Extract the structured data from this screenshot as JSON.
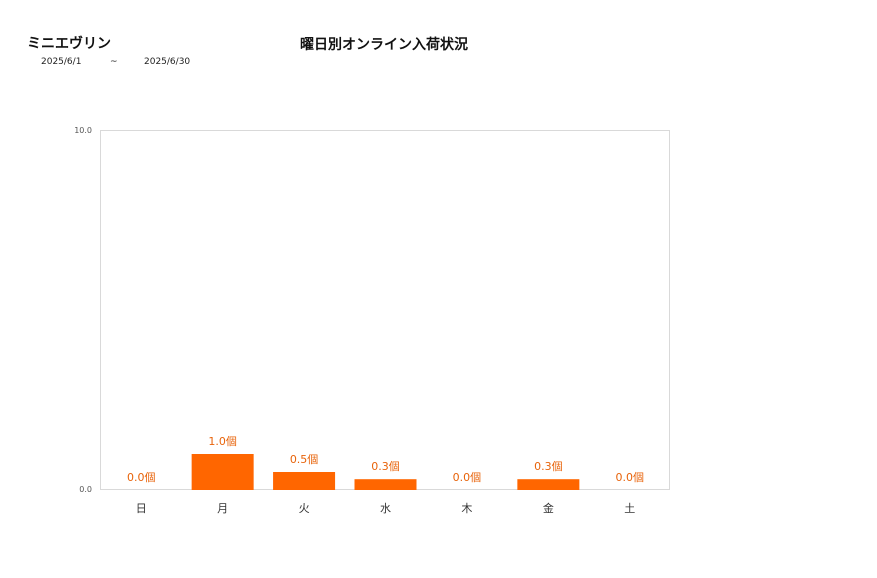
{
  "header": {
    "product_name": "ミニエヴリン",
    "date_from": "2025/6/1",
    "date_sep": "~",
    "date_to": "2025/6/30"
  },
  "chart_data": {
    "type": "bar",
    "title": "曜日別オンライン入荷状況",
    "categories": [
      "日",
      "月",
      "火",
      "水",
      "木",
      "金",
      "土"
    ],
    "values": [
      0.0,
      1.0,
      0.5,
      0.3,
      0.0,
      0.3,
      0.0
    ],
    "data_labels": [
      "0.0個",
      "1.0個",
      "0.5個",
      "0.3個",
      "0.0個",
      "0.3個",
      "0.0個"
    ],
    "yticks": [
      "0.0",
      "10.0"
    ],
    "ylim": [
      0,
      10
    ],
    "xlabel": "",
    "ylabel": "",
    "grid": false,
    "bar_color": "#ff6600",
    "label_color": "#e8630a"
  }
}
